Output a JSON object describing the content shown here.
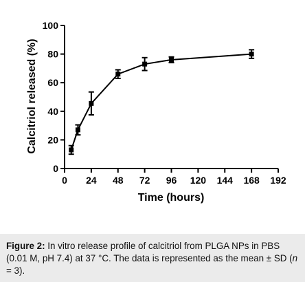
{
  "chart_data": {
    "type": "line",
    "title": "",
    "xlabel": "Time (hours)",
    "ylabel": "Calcitriol released (%)",
    "xlim": [
      0,
      192
    ],
    "ylim": [
      0,
      100
    ],
    "xticks": [
      0,
      24,
      48,
      72,
      96,
      120,
      144,
      168,
      192
    ],
    "yticks": [
      0,
      20,
      40,
      60,
      80,
      100
    ],
    "grid": false,
    "legend": "none",
    "series": [
      {
        "x": [
          6,
          12,
          24,
          48,
          72,
          96,
          168
        ],
        "y": [
          13,
          27,
          45.5,
          66,
          73,
          76,
          80
        ],
        "error": [
          3,
          3.5,
          8,
          3,
          4.5,
          2,
          3
        ],
        "color": "#000000"
      }
    ]
  },
  "caption": {
    "label": "Figure 2:",
    "text_part1": " In vitro release profile of calcitriol from PLGA NPs in PBS (0.01 M, pH 7.4) at 37 °C. The data is represented as the mean ± SD (",
    "n_var": "n",
    "text_part2": " = 3)."
  }
}
